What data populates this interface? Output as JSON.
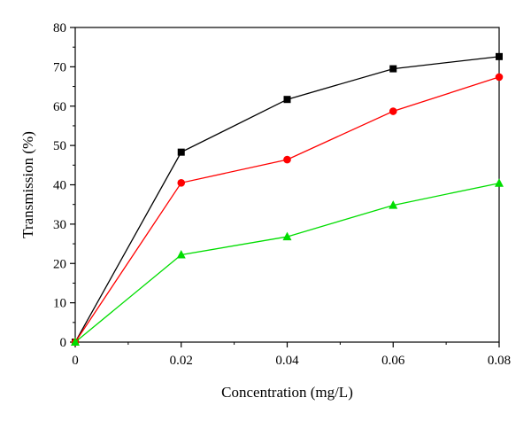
{
  "chart_data": {
    "type": "line",
    "xlabel": "Concentration (mg/L)",
    "ylabel": "Transmission (%)",
    "xlim": [
      0,
      0.08
    ],
    "ylim": [
      0,
      80
    ],
    "x_ticks": [
      0,
      0.02,
      0.04,
      0.06,
      0.08
    ],
    "x_tick_labels": [
      "0",
      "0.02",
      "0.04",
      "0.06",
      "0.08"
    ],
    "y_ticks": [
      0,
      10,
      20,
      30,
      40,
      50,
      60,
      70,
      80
    ],
    "y_tick_labels": [
      "0",
      "10",
      "20",
      "30",
      "40",
      "50",
      "60",
      "70",
      "80"
    ],
    "x": [
      0,
      0.02,
      0.04,
      0.06,
      0.08
    ],
    "grid": false,
    "legend": "none",
    "series": [
      {
        "values": [
          0,
          48.3,
          61.7,
          69.5,
          72.6
        ],
        "color": "#000000",
        "marker": "square"
      },
      {
        "values": [
          0,
          40.5,
          46.4,
          58.7,
          67.4
        ],
        "color": "#ff0000",
        "marker": "circle"
      },
      {
        "values": [
          0,
          22.2,
          26.8,
          34.8,
          40.4
        ],
        "color": "#00dd00",
        "marker": "triangle"
      }
    ]
  }
}
